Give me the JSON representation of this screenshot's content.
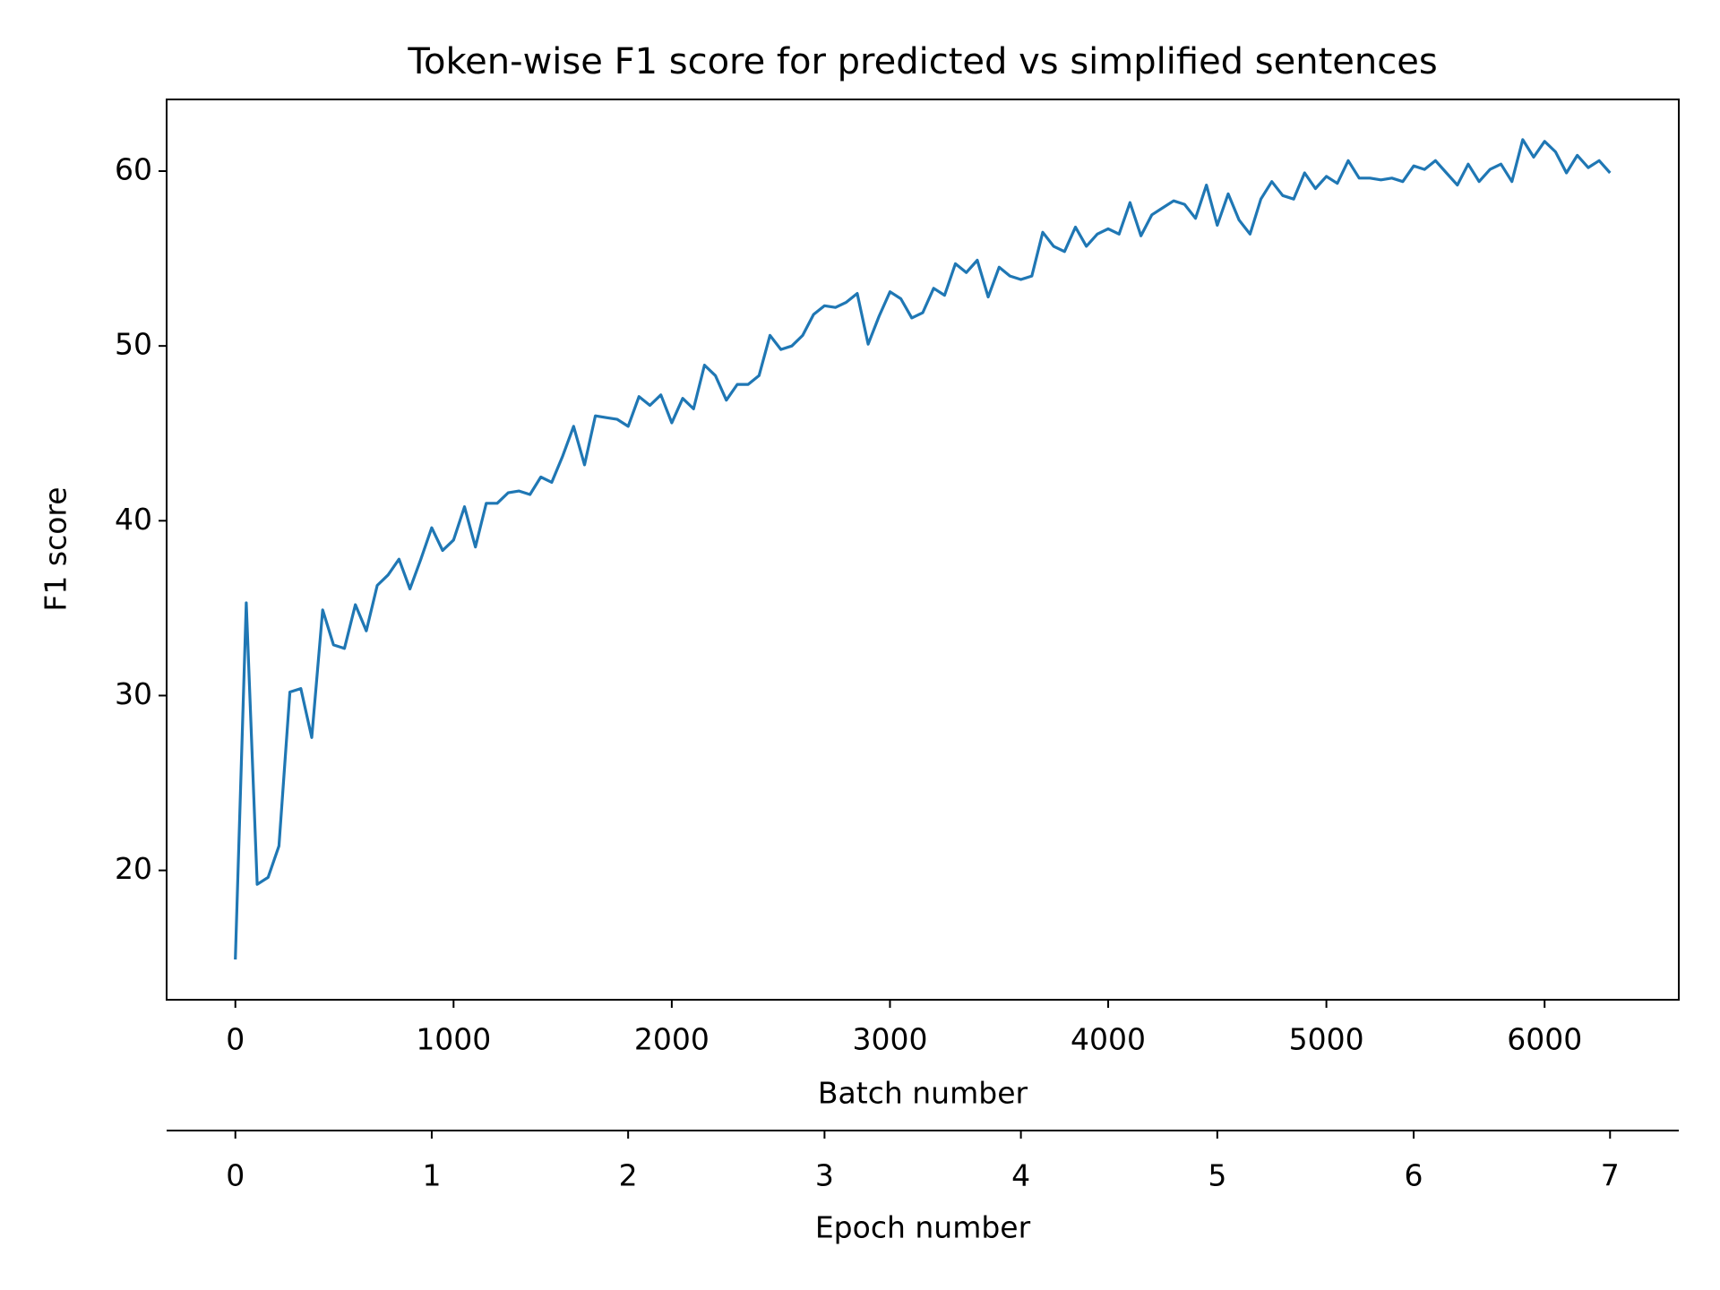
{
  "chart_data": {
    "type": "line",
    "title": "Token-wise F1 score for predicted vs simplified sentences",
    "xlabel": "Batch number",
    "ylabel": "F1 score",
    "x2label": "Epoch number",
    "color": "#1f77b4",
    "grid": false,
    "x": [
      0,
      50,
      100,
      150,
      200,
      250,
      300,
      350,
      400,
      450,
      500,
      550,
      600,
      650,
      700,
      750,
      800,
      850,
      900,
      950,
      1000,
      1050,
      1100,
      1150,
      1200,
      1250,
      1300,
      1350,
      1400,
      1450,
      1500,
      1550,
      1600,
      1650,
      1700,
      1750,
      1800,
      1850,
      1900,
      1950,
      2000,
      2050,
      2100,
      2150,
      2200,
      2250,
      2300,
      2350,
      2400,
      2450,
      2500,
      2550,
      2600,
      2650,
      2700,
      2750,
      2800,
      2850,
      2900,
      2950,
      3000,
      3050,
      3100,
      3150,
      3200,
      3250,
      3300,
      3350,
      3400,
      3450,
      3500,
      3550,
      3600,
      3650,
      3700,
      3750,
      3800,
      3850,
      3900,
      3950,
      4000,
      4050,
      4100,
      4150,
      4200,
      4250,
      4300,
      4350,
      4400,
      4450,
      4500,
      4550,
      4600,
      4650,
      4700,
      4750,
      4800,
      4850,
      4900,
      4950,
      5000,
      5050,
      5100,
      5150,
      5200,
      5250,
      5300,
      5350,
      5400,
      5450,
      5500,
      5550,
      5600,
      5650,
      5700,
      5750,
      5800,
      5850,
      5900,
      5950,
      6000,
      6050,
      6100,
      6150,
      6200,
      6250,
      6300
    ],
    "values": [
      14.9,
      35.3,
      19.2,
      19.6,
      21.4,
      30.2,
      30.4,
      27.6,
      34.9,
      32.9,
      32.7,
      35.2,
      33.7,
      36.3,
      36.9,
      37.8,
      36.1,
      37.8,
      39.6,
      38.3,
      38.9,
      40.8,
      38.5,
      41.0,
      41.0,
      41.6,
      41.7,
      41.5,
      42.5,
      42.2,
      43.7,
      45.4,
      43.2,
      46.0,
      45.9,
      45.8,
      45.4,
      47.1,
      46.6,
      47.2,
      45.6,
      47.0,
      46.4,
      48.9,
      48.3,
      46.9,
      47.8,
      47.8,
      48.3,
      50.6,
      49.8,
      50.0,
      50.6,
      51.8,
      52.3,
      52.2,
      52.5,
      53.0,
      50.1,
      51.7,
      53.1,
      52.7,
      51.6,
      51.9,
      53.3,
      52.9,
      54.7,
      54.2,
      54.9,
      52.8,
      54.5,
      54.0,
      53.8,
      54.0,
      56.5,
      55.7,
      55.4,
      56.8,
      55.7,
      56.4,
      56.7,
      56.4,
      58.2,
      56.3,
      57.5,
      57.9,
      58.3,
      58.1,
      57.3,
      59.2,
      56.9,
      58.7,
      57.2,
      56.4,
      58.4,
      59.4,
      58.6,
      58.4,
      59.9,
      59.0,
      59.7,
      59.3,
      60.6,
      59.6,
      59.6,
      59.5,
      59.6,
      59.4,
      60.3,
      60.1,
      60.6,
      59.9,
      59.2,
      60.4,
      59.4,
      60.1,
      60.4,
      59.4,
      61.8,
      60.8,
      61.7,
      61.1,
      59.9,
      60.9,
      60.2,
      60.6,
      59.9
    ],
    "xlim": [
      -315,
      6615
    ],
    "xticks": [
      0,
      1000,
      2000,
      3000,
      4000,
      5000,
      6000
    ],
    "ylim": [
      12.6,
      64.1
    ],
    "yticks": [
      20,
      30,
      40,
      50,
      60
    ],
    "x2lim": [
      -0.35,
      7.35
    ],
    "x2ticks": [
      0,
      1,
      2,
      3,
      4,
      5,
      6,
      7
    ]
  }
}
